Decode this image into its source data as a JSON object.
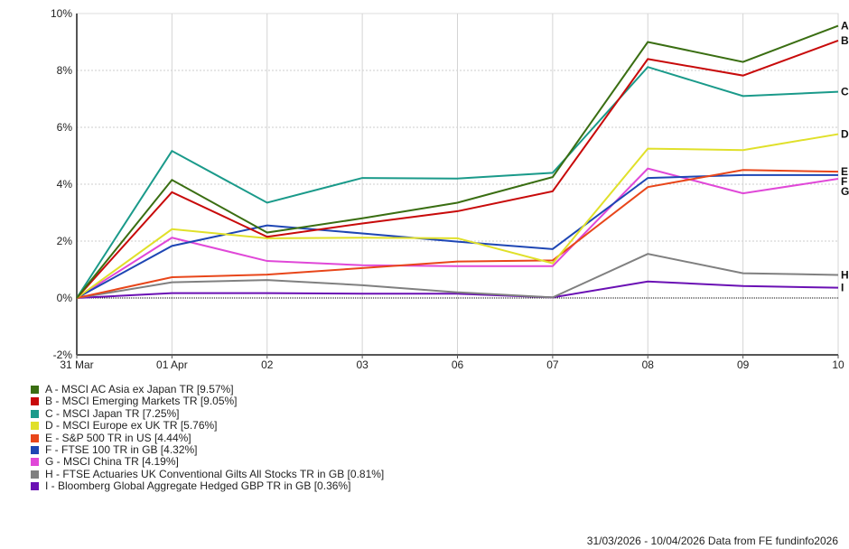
{
  "chart_data": {
    "type": "line",
    "x": [
      "31 Mar",
      "01 Apr",
      "02",
      "03",
      "06",
      "07",
      "08",
      "09",
      "10"
    ],
    "ylim": [
      -2,
      10
    ],
    "yticks": [
      "-2%",
      "0%",
      "2%",
      "4%",
      "6%",
      "8%",
      "10%"
    ],
    "grid": true,
    "legend_position": "bottom-left",
    "series": [
      {
        "key": "A",
        "name": "A - MSCI AC Asia ex Japan TR [9.57%]",
        "color": "#3a6e12",
        "values": [
          0,
          4.15,
          2.3,
          2.8,
          3.35,
          4.25,
          9.0,
          8.3,
          9.57
        ]
      },
      {
        "key": "B",
        "name": "B - MSCI Emerging Markets TR [9.05%]",
        "color": "#c80a0a",
        "values": [
          0,
          3.72,
          2.15,
          2.62,
          3.05,
          3.75,
          8.4,
          7.82,
          9.05
        ]
      },
      {
        "key": "C",
        "name": "C - MSCI Japan TR [7.25%]",
        "color": "#1a9a8a",
        "values": [
          0,
          5.17,
          3.35,
          4.22,
          4.2,
          4.4,
          8.12,
          7.1,
          7.25
        ]
      },
      {
        "key": "D",
        "name": "D - MSCI Europe ex UK TR [5.76%]",
        "color": "#e0e02a",
        "values": [
          0,
          2.42,
          2.1,
          2.12,
          2.1,
          1.22,
          5.25,
          5.2,
          5.76
        ]
      },
      {
        "key": "E",
        "name": "E - S&P 500 TR in US [4.44%]",
        "color": "#e8461a",
        "values": [
          0,
          0.73,
          0.82,
          1.05,
          1.28,
          1.32,
          3.9,
          4.5,
          4.44
        ]
      },
      {
        "key": "F",
        "name": "F - FTSE 100 TR in GB [4.32%]",
        "color": "#1e46b4",
        "values": [
          0,
          1.83,
          2.55,
          2.27,
          1.98,
          1.72,
          4.22,
          4.32,
          4.32
        ]
      },
      {
        "key": "G",
        "name": "G - MSCI China TR [4.19%]",
        "color": "#e048d8",
        "values": [
          0,
          2.12,
          1.3,
          1.15,
          1.12,
          1.12,
          4.55,
          3.68,
          4.19
        ]
      },
      {
        "key": "H",
        "name": "H - FTSE Actuaries UK Conventional Gilts All Stocks TR in GB [0.81%]",
        "color": "#808080",
        "values": [
          0,
          0.55,
          0.63,
          0.45,
          0.2,
          0.02,
          1.55,
          0.87,
          0.81
        ]
      },
      {
        "key": "I",
        "name": "I - Bloomberg Global Aggregate Hedged GBP TR in GB [0.36%]",
        "color": "#6a10b4",
        "values": [
          0,
          0.17,
          0.17,
          0.15,
          0.15,
          0.02,
          0.58,
          0.42,
          0.36
        ]
      }
    ]
  },
  "footer": "31/03/2026 - 10/04/2026 Data from FE fundinfo2026"
}
